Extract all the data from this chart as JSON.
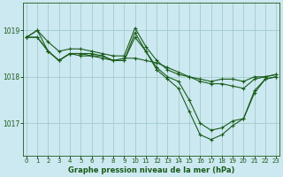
{
  "title": "Graphe pression niveau de la mer (hPa)",
  "bg_color": "#cce8f0",
  "line_color": "#1a5c1a",
  "grid_color": "#a0cccc",
  "x_ticks": [
    0,
    1,
    2,
    3,
    4,
    5,
    6,
    7,
    8,
    9,
    10,
    11,
    12,
    13,
    14,
    15,
    16,
    17,
    18,
    19,
    20,
    21,
    22,
    23
  ],
  "ylim": [
    1016.3,
    1019.6
  ],
  "yticks": [
    1017,
    1018,
    1019
  ],
  "series": [
    [
      1018.85,
      1019.0,
      1018.75,
      1018.55,
      1018.6,
      1018.6,
      1018.55,
      1018.5,
      1018.45,
      1018.45,
      1019.05,
      1018.65,
      1018.35,
      1018.15,
      1018.05,
      1018.0,
      1017.95,
      1017.9,
      1017.95,
      1017.95,
      1017.9,
      1018.0,
      1018.0,
      1018.05
    ],
    [
      1018.85,
      1018.85,
      1018.55,
      1018.35,
      1018.5,
      1018.5,
      1018.5,
      1018.45,
      1018.35,
      1018.4,
      1018.4,
      1018.35,
      1018.3,
      1018.2,
      1018.1,
      1018.0,
      1017.9,
      1017.85,
      1017.85,
      1017.8,
      1017.75,
      1017.95,
      1018.0,
      1018.05
    ],
    [
      1018.85,
      1018.85,
      1018.55,
      1018.35,
      1018.5,
      1018.45,
      1018.45,
      1018.4,
      1018.35,
      1018.35,
      1018.95,
      1018.55,
      1018.15,
      1017.95,
      1017.75,
      1017.25,
      1016.75,
      1016.65,
      1016.75,
      1016.95,
      1017.1,
      1017.65,
      1017.95,
      1018.0
    ],
    [
      1018.85,
      1019.0,
      1018.55,
      1018.35,
      1018.5,
      1018.5,
      1018.45,
      1018.45,
      1018.35,
      1018.35,
      1018.85,
      1018.55,
      1018.2,
      1018.0,
      1017.9,
      1017.5,
      1017.0,
      1016.85,
      1016.9,
      1017.05,
      1017.1,
      1017.7,
      1017.95,
      1018.0
    ]
  ]
}
